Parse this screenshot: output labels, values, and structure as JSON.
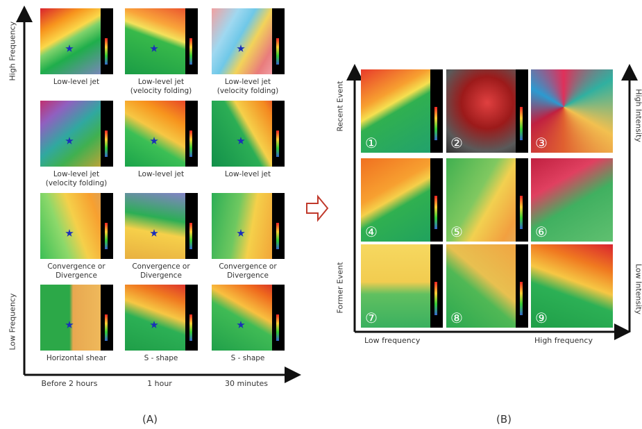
{
  "panel_a": {
    "label": "(A)",
    "y_axis": {
      "top": "High Frequency",
      "bottom": "Low Frequency"
    },
    "x_axis": [
      "Before 2 hours",
      "1 hour",
      "30 minutes"
    ],
    "captions": [
      [
        "Low-level jet",
        "Low-level jet (velocity folding)",
        "Low-level jet (velocity folding)"
      ],
      [
        "Low-level jet (velocity folding)",
        "Low-level jet",
        "Low-level jet"
      ],
      [
        "Convergence or Divergence",
        "Convergence or Divergence",
        "Convergence or Divergence"
      ],
      [
        "Horizontal shear",
        "S - shape",
        "S - shape"
      ]
    ]
  },
  "panel_b": {
    "label": "(B)",
    "left_axis": {
      "top": "Recent Event",
      "bottom": "Former Event"
    },
    "right_axis": {
      "top": "High Intensity",
      "bottom": "Low Intensity"
    },
    "x_axis": {
      "left": "Low frequency",
      "right": "High frequency"
    },
    "numbers": [
      "①",
      "②",
      "③",
      "④",
      "⑤",
      "⑥",
      "⑦",
      "⑧",
      "⑨"
    ]
  }
}
